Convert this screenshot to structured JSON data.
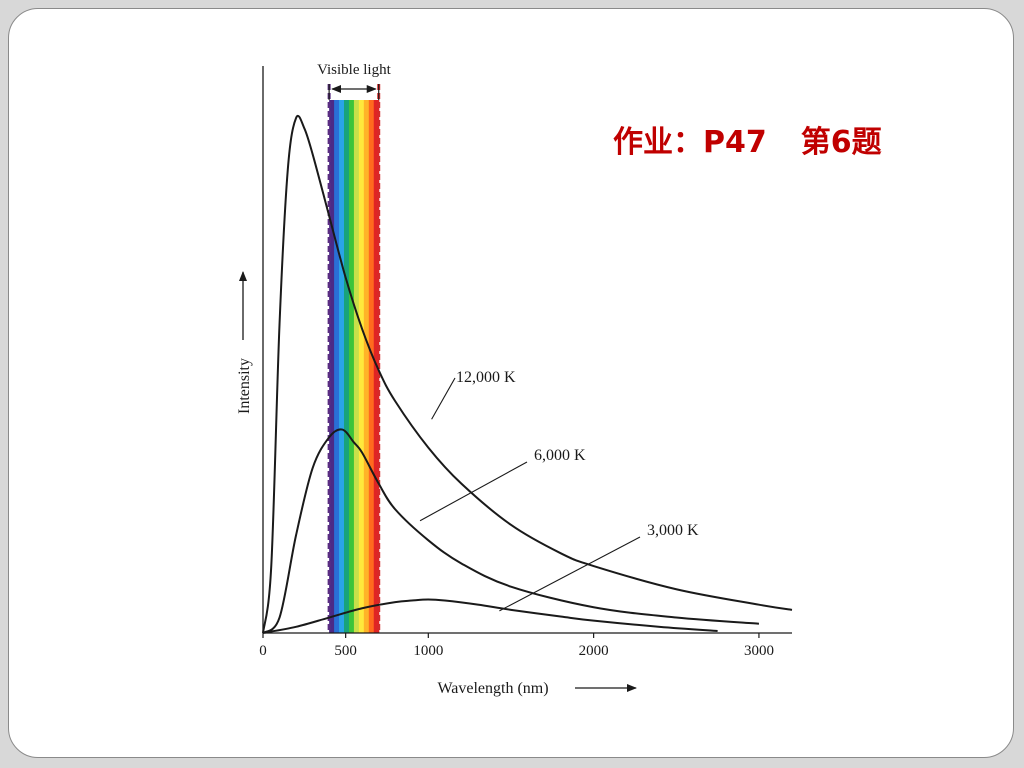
{
  "slide": {
    "homework_prefix": "作业：",
    "homework_page": "P47",
    "homework_problem": "第6题",
    "colors": {
      "homework_text": "#c00000",
      "curve": "#1a1a1a",
      "band_border_left": "#5a2d82",
      "band_border_right": "#d42a2a"
    }
  },
  "chart_data": {
    "type": "line",
    "title": "",
    "xlabel": "Wavelength (nm)",
    "ylabel": "Intensity",
    "xlim": [
      0,
      3200
    ],
    "ylim": [
      0,
      1
    ],
    "x_ticks": [
      0,
      500,
      1000,
      2000,
      3000
    ],
    "y_ticks_shown": false,
    "grid": false,
    "annotation": {
      "label": "Visible light",
      "x_start": 400,
      "x_end": 700,
      "band_colors": [
        "#4b2a86",
        "#2a6fd6",
        "#2aa4e8",
        "#19a37a",
        "#3cc43a",
        "#c8e04a",
        "#ffe93c",
        "#ffb428",
        "#ff6a1e",
        "#e02424"
      ]
    },
    "series": [
      {
        "name": "12,000 K",
        "x": [
          0,
          50,
          100,
          150,
          200,
          250,
          300,
          400,
          500,
          600,
          700,
          800,
          1000,
          1200,
          1500,
          1800,
          2000,
          2500,
          3000,
          3200
        ],
        "y": [
          0,
          0.13,
          0.6,
          0.9,
          1.0,
          0.98,
          0.93,
          0.81,
          0.69,
          0.59,
          0.51,
          0.45,
          0.36,
          0.29,
          0.21,
          0.155,
          0.13,
          0.085,
          0.055,
          0.045
        ]
      },
      {
        "name": "6,000 K",
        "x": [
          0,
          100,
          200,
          300,
          400,
          480,
          550,
          600,
          700,
          800,
          1000,
          1200,
          1500,
          2000,
          2500,
          3000
        ],
        "y": [
          0,
          0.03,
          0.19,
          0.32,
          0.38,
          0.395,
          0.37,
          0.35,
          0.29,
          0.24,
          0.18,
          0.135,
          0.09,
          0.05,
          0.03,
          0.018
        ]
      },
      {
        "name": "3,000 K",
        "x": [
          0,
          200,
          400,
          600,
          800,
          900,
          1000,
          1100,
          1300,
          1500,
          1800,
          2000,
          2400,
          2750
        ],
        "y": [
          0,
          0.012,
          0.03,
          0.048,
          0.06,
          0.063,
          0.065,
          0.063,
          0.055,
          0.045,
          0.032,
          0.024,
          0.012,
          0.004
        ]
      }
    ]
  }
}
